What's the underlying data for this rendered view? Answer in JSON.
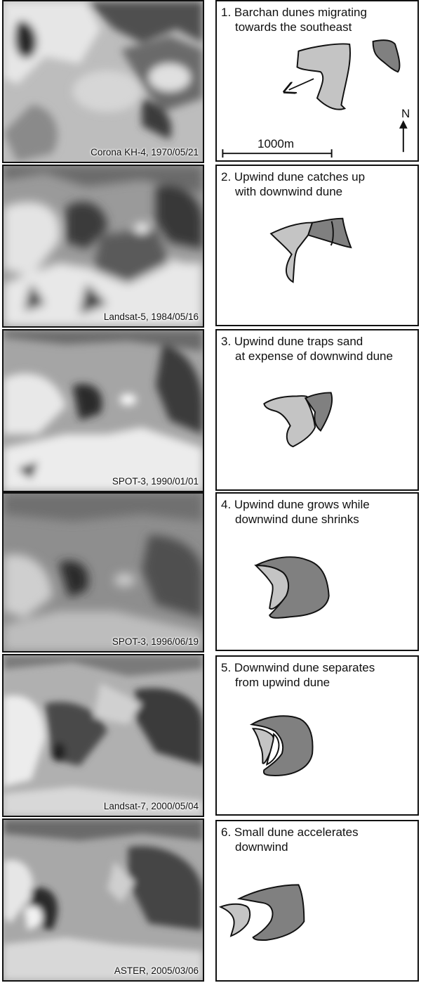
{
  "colors": {
    "upwind_dune": "#c4c4c4",
    "downwind_dune": "#808080",
    "outline": "#111111"
  },
  "panels": [
    {
      "number_title": "1. Barchan dunes migrating",
      "title_line2": "towards the southeast",
      "image_caption": "Corona KH-4, 1970/05/21"
    },
    {
      "number_title": "2. Upwind dune catches up",
      "title_line2": "with downwind dune",
      "image_caption": "Landsat-5, 1984/05/16"
    },
    {
      "number_title": "3. Upwind dune traps sand",
      "title_line2": "at expense of downwind dune",
      "image_caption": "SPOT-3, 1990/01/01"
    },
    {
      "number_title": "4. Upwind dune grows while",
      "title_line2": "downwind dune shrinks",
      "image_caption": "SPOT-3, 1996/06/19"
    },
    {
      "number_title": "5. Downwind dune separates",
      "title_line2": "from upwind dune",
      "image_caption": "Landsat-7, 2000/05/04"
    },
    {
      "number_title": "6. Small dune accelerates",
      "title_line2": "downwind",
      "image_caption": "ASTER, 2005/03/06"
    }
  ],
  "scale_bar_label": "1000m",
  "north_label": "N"
}
